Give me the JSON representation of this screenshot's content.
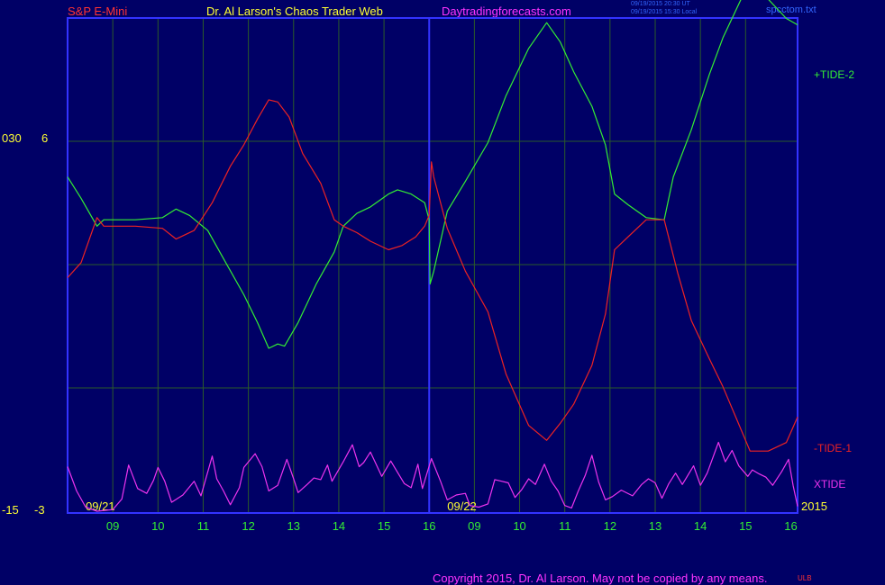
{
  "header": {
    "instrument": "S&P E-Mini",
    "title": "Dr. Al Larson's Chaos Trader Web",
    "website": "Daytradingforecasts.com",
    "stamp_line1": "09/19/2015 20:30 UT",
    "stamp_line2": "09/19/2015 15:30 Local",
    "source_file": "spcctom.txt"
  },
  "footer": {
    "copyright": "Copyright 2015, Dr. Al Larson. May not be copied by any means.",
    "tag": "ULB"
  },
  "colors": {
    "background": "#000066",
    "plot_border": "#3333ff",
    "grid": "#2a5a2a",
    "tide2": "#33ee33",
    "tide1": "#ee2222",
    "xtide": "#ee33ee",
    "axis_text": "#ffff33",
    "hour_labels": "#33ee33",
    "instrument": "#ff3333",
    "site": "#ff33ff",
    "stamp": "#3366ff",
    "copyright": "#ff33ff"
  },
  "chart_data": {
    "type": "line",
    "x_unit": "hour",
    "days": [
      {
        "label": "09/21",
        "hours": [
          "09",
          "10",
          "11",
          "12",
          "13",
          "14",
          "15",
          "16"
        ]
      },
      {
        "label": "09/22",
        "hours": [
          "09",
          "10",
          "11",
          "12",
          "13",
          "14",
          "15",
          "16"
        ]
      }
    ],
    "year_label": "2015",
    "y_labels": {
      "top_left": "030",
      "top_right": "6",
      "bottom_left": "-15",
      "bottom_right": "-3"
    },
    "xlim": [
      8.0,
      24.15
    ],
    "main_ylim": [
      -11,
      9
    ],
    "xtide_ylim": [
      -5,
      5
    ],
    "series": [
      {
        "name": "+TIDE-2",
        "points": [
          [
            8.0,
            2
          ],
          [
            8.3,
            1
          ],
          [
            8.65,
            -0.3
          ],
          [
            8.8,
            0
          ],
          [
            9.5,
            0
          ],
          [
            10.1,
            0.1
          ],
          [
            10.4,
            0.5
          ],
          [
            10.7,
            0.2
          ],
          [
            11.1,
            -0.5
          ],
          [
            11.5,
            -2
          ],
          [
            11.9,
            -3.5
          ],
          [
            12.2,
            -4.8
          ],
          [
            12.45,
            -6
          ],
          [
            12.65,
            -5.8
          ],
          [
            12.8,
            -5.9
          ],
          [
            13.1,
            -4.8
          ],
          [
            13.5,
            -3
          ],
          [
            13.9,
            -1.5
          ],
          [
            14.1,
            -0.3
          ],
          [
            14.4,
            0.3
          ],
          [
            14.7,
            0.6
          ],
          [
            15.1,
            1.2
          ],
          [
            15.3,
            1.4
          ],
          [
            15.6,
            1.2
          ],
          [
            15.9,
            0.8
          ],
          [
            16.0,
            0
          ],
          [
            16.02,
            -3
          ],
          [
            16.1,
            -2.4
          ],
          [
            16.4,
            0.4
          ],
          [
            16.8,
            1.8
          ],
          [
            17.3,
            3.6
          ],
          [
            17.7,
            5.8
          ],
          [
            18.2,
            8
          ],
          [
            18.6,
            9.2
          ],
          [
            18.9,
            8.3
          ],
          [
            19.2,
            6.9
          ],
          [
            19.6,
            5.3
          ],
          [
            19.9,
            3.5
          ],
          [
            20.1,
            1.2
          ],
          [
            20.4,
            0.7
          ],
          [
            20.8,
            0.1
          ],
          [
            21.2,
            0
          ],
          [
            21.4,
            2
          ],
          [
            21.8,
            4.2
          ],
          [
            22.2,
            6.8
          ],
          [
            22.5,
            8.5
          ],
          [
            22.9,
            10.3
          ],
          [
            23.1,
            10.4
          ],
          [
            23.5,
            10.3
          ],
          [
            23.9,
            9.4
          ],
          [
            24.15,
            9.1
          ]
        ]
      },
      {
        "name": "-TIDE-1",
        "points": [
          [
            8.0,
            -2.7
          ],
          [
            8.3,
            -2
          ],
          [
            8.65,
            0.1
          ],
          [
            8.8,
            -0.3
          ],
          [
            9.5,
            -0.3
          ],
          [
            10.1,
            -0.4
          ],
          [
            10.4,
            -0.9
          ],
          [
            10.8,
            -0.5
          ],
          [
            11.2,
            0.8
          ],
          [
            11.6,
            2.5
          ],
          [
            11.9,
            3.5
          ],
          [
            12.2,
            4.7
          ],
          [
            12.45,
            5.6
          ],
          [
            12.65,
            5.5
          ],
          [
            12.9,
            4.8
          ],
          [
            13.2,
            3.1
          ],
          [
            13.6,
            1.7
          ],
          [
            13.9,
            0
          ],
          [
            14.1,
            -0.3
          ],
          [
            14.4,
            -0.6
          ],
          [
            14.7,
            -1
          ],
          [
            15.1,
            -1.4
          ],
          [
            15.4,
            -1.2
          ],
          [
            15.7,
            -0.8
          ],
          [
            15.9,
            -0.3
          ],
          [
            16.0,
            0.2
          ],
          [
            16.05,
            2.7
          ],
          [
            16.1,
            2
          ],
          [
            16.4,
            -0.4
          ],
          [
            16.8,
            -2.4
          ],
          [
            17.3,
            -4.3
          ],
          [
            17.7,
            -7.2
          ],
          [
            18.2,
            -9.6
          ],
          [
            18.6,
            -10.3
          ],
          [
            18.9,
            -9.5
          ],
          [
            19.2,
            -8.6
          ],
          [
            19.6,
            -6.8
          ],
          [
            19.9,
            -4.4
          ],
          [
            20.1,
            -1.4
          ],
          [
            20.4,
            -0.8
          ],
          [
            20.8,
            0
          ],
          [
            21.2,
            0
          ],
          [
            21.5,
            -2.5
          ],
          [
            21.8,
            -4.7
          ],
          [
            22.2,
            -6.5
          ],
          [
            22.5,
            -7.8
          ],
          [
            22.8,
            -9.3
          ],
          [
            23.1,
            -10.8
          ],
          [
            23.5,
            -10.8
          ],
          [
            23.9,
            -10.4
          ],
          [
            24.15,
            -9.2
          ]
        ]
      },
      {
        "name": "XTIDE",
        "points": [
          [
            8.0,
            0.5
          ],
          [
            8.2,
            -2.5
          ],
          [
            8.4,
            -4.5
          ],
          [
            8.65,
            -5
          ],
          [
            9.0,
            -4.8
          ],
          [
            9.2,
            -3.5
          ],
          [
            9.35,
            0.7
          ],
          [
            9.55,
            -2.2
          ],
          [
            9.75,
            -2.8
          ],
          [
            9.9,
            -1.2
          ],
          [
            10.0,
            0.4
          ],
          [
            10.15,
            -1.3
          ],
          [
            10.3,
            -3.9
          ],
          [
            10.55,
            -3
          ],
          [
            10.8,
            -1.3
          ],
          [
            10.95,
            -3.1
          ],
          [
            11.2,
            1.8
          ],
          [
            11.3,
            -1
          ],
          [
            11.45,
            -2.5
          ],
          [
            11.6,
            -4.2
          ],
          [
            11.8,
            -2.1
          ],
          [
            11.9,
            0.4
          ],
          [
            12.15,
            2.1
          ],
          [
            12.3,
            0.5
          ],
          [
            12.45,
            -2.5
          ],
          [
            12.65,
            -1.8
          ],
          [
            12.85,
            1.4
          ],
          [
            13.0,
            -1
          ],
          [
            13.1,
            -2.7
          ],
          [
            13.3,
            -1.7
          ],
          [
            13.45,
            -0.9
          ],
          [
            13.6,
            -1.1
          ],
          [
            13.75,
            0.7
          ],
          [
            13.85,
            -1.3
          ],
          [
            14.1,
            1.1
          ],
          [
            14.3,
            3.2
          ],
          [
            14.45,
            0.5
          ],
          [
            14.55,
            1
          ],
          [
            14.7,
            2.3
          ],
          [
            14.8,
            1.1
          ],
          [
            14.95,
            -0.7
          ],
          [
            15.15,
            1.2
          ],
          [
            15.3,
            -0.2
          ],
          [
            15.45,
            -1.6
          ],
          [
            15.6,
            -2.1
          ],
          [
            15.75,
            0.8
          ],
          [
            15.85,
            -2.2
          ],
          [
            16.05,
            1.5
          ],
          [
            16.25,
            -1.3
          ],
          [
            16.4,
            -3.6
          ],
          [
            16.6,
            -3
          ],
          [
            16.8,
            -2.8
          ],
          [
            16.9,
            -4.3
          ],
          [
            17.1,
            -4.5
          ],
          [
            17.3,
            -4.1
          ],
          [
            17.45,
            -1.1
          ],
          [
            17.6,
            -1.3
          ],
          [
            17.75,
            -1.5
          ],
          [
            17.9,
            -3.3
          ],
          [
            18.05,
            -2.3
          ],
          [
            18.2,
            -1
          ],
          [
            18.35,
            -1.7
          ],
          [
            18.55,
            0.8
          ],
          [
            18.7,
            -1.3
          ],
          [
            18.85,
            -2.5
          ],
          [
            19.0,
            -4.3
          ],
          [
            19.15,
            -4.6
          ],
          [
            19.3,
            -2.5
          ],
          [
            19.45,
            -0.6
          ],
          [
            19.6,
            1.9
          ],
          [
            19.75,
            -1.4
          ],
          [
            19.9,
            -3.6
          ],
          [
            20.05,
            -3.2
          ],
          [
            20.25,
            -2.4
          ],
          [
            20.5,
            -3.1
          ],
          [
            20.7,
            -1.7
          ],
          [
            20.85,
            -1
          ],
          [
            21.0,
            -1.5
          ],
          [
            21.15,
            -3.4
          ],
          [
            21.3,
            -1.6
          ],
          [
            21.45,
            -0.3
          ],
          [
            21.6,
            -1.7
          ],
          [
            21.85,
            0.6
          ],
          [
            22.0,
            -1.8
          ],
          [
            22.15,
            -0.3
          ],
          [
            22.4,
            3.5
          ],
          [
            22.55,
            1.1
          ],
          [
            22.7,
            2.5
          ],
          [
            22.85,
            0.6
          ],
          [
            23.05,
            -0.7
          ],
          [
            23.15,
            0.1
          ],
          [
            23.3,
            -0.4
          ],
          [
            23.45,
            -0.8
          ],
          [
            23.6,
            -1.8
          ],
          [
            23.8,
            -0.1
          ],
          [
            23.95,
            1.4
          ],
          [
            24.05,
            -1.8
          ],
          [
            24.15,
            -4.4
          ]
        ]
      }
    ]
  }
}
